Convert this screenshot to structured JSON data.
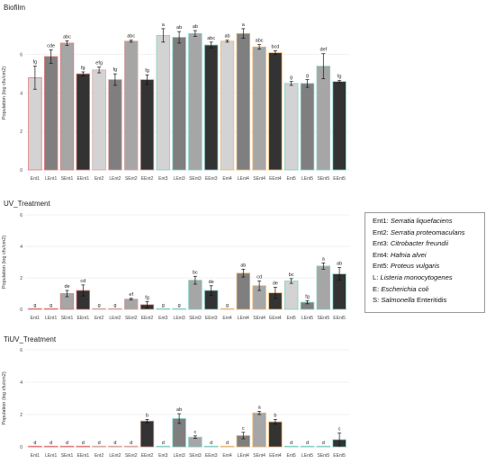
{
  "chart_data": [
    {
      "type": "bar",
      "title": "Biofilm",
      "ylabel": "Population (log cfu/cm2)",
      "ylim": [
        0,
        8
      ],
      "yticks": [
        0,
        2,
        4,
        6
      ],
      "categories": [
        "Ent1",
        "LEnt1",
        "SEnt1",
        "EEnt1",
        "Ent2",
        "LEnt2",
        "SEnt2",
        "EEnt2",
        "Ent3",
        "LEnt3",
        "SEnt3",
        "EEnt3",
        "Ent4",
        "LEnt4",
        "SEnt4",
        "EEnt4",
        "Ent5",
        "LEnt5",
        "SEnt5",
        "EEnt5"
      ],
      "values": [
        4.8,
        5.9,
        6.6,
        5.0,
        5.2,
        4.7,
        6.7,
        4.7,
        7.0,
        6.9,
        7.1,
        6.5,
        6.7,
        7.1,
        6.4,
        6.1,
        4.5,
        4.5,
        5.4,
        4.6
      ],
      "errors": [
        0.6,
        0.35,
        0.12,
        0.1,
        0.15,
        0.3,
        0.05,
        0.25,
        0.35,
        0.3,
        0.15,
        0.15,
        0.05,
        0.25,
        0.12,
        0.1,
        0.1,
        0.2,
        0.65,
        0.05
      ],
      "letters": [
        "fg",
        "cde",
        "abc",
        "fg",
        "efg",
        "fg",
        "abc",
        "fg",
        "a",
        "ab",
        "ab",
        "abc",
        "ab",
        "a",
        "abc",
        "bcd",
        "g",
        "g",
        "def",
        "fg"
      ]
    },
    {
      "type": "bar",
      "title": "UV_Treatment",
      "ylabel": "Population (log cfu/cm2)",
      "ylim": [
        0,
        6
      ],
      "yticks": [
        0,
        2,
        4,
        6
      ],
      "categories": [
        "Ent1",
        "LEnt1",
        "SEnt1",
        "EEnt1",
        "Ent2",
        "LEnt2",
        "SEnt2",
        "EEnt2",
        "Ent3",
        "LEnt3",
        "SEnt3",
        "EEnt3",
        "Ent4",
        "LEnt4",
        "SEnt4",
        "EEnt4",
        "Ent5",
        "LEnt5",
        "SEnt5",
        "EEnt5"
      ],
      "values": [
        0,
        0,
        1.0,
        1.2,
        0,
        0,
        0.65,
        0.3,
        0,
        0,
        1.85,
        1.2,
        0,
        2.3,
        1.5,
        1.05,
        1.8,
        0.45,
        2.75,
        2.25
      ],
      "errors": [
        0,
        0,
        0.2,
        0.35,
        0,
        0,
        0.05,
        0.2,
        0,
        0,
        0.25,
        0.3,
        0,
        0.25,
        0.3,
        0.35,
        0.15,
        0.1,
        0.2,
        0.4
      ],
      "letters": [
        "g",
        "g",
        "de",
        "cd",
        "g",
        "g",
        "ef",
        "fg",
        "g",
        "g",
        "bc",
        "de",
        "g",
        "ab",
        "cd",
        "de",
        "bc",
        "fg",
        "a",
        "ab"
      ]
    },
    {
      "type": "bar",
      "title": "TiUV_Treatment",
      "ylabel": "Population (log cfu/cm2)",
      "ylim": [
        0,
        6
      ],
      "yticks": [
        0,
        2,
        4,
        6
      ],
      "categories": [
        "Ent1",
        "LEnt1",
        "SEnt1",
        "EEnt1",
        "Ent2",
        "LEnt2",
        "SEnt2",
        "EEnt2",
        "Ent3",
        "LEnt3",
        "SEnt3",
        "EEnt3",
        "Ent4",
        "LEnt4",
        "SEnt4",
        "EEnt4",
        "Ent5",
        "LEnt5",
        "SEnt5",
        "EEnt5"
      ],
      "values": [
        0,
        0,
        0,
        0,
        0,
        0,
        0,
        1.6,
        0,
        1.75,
        0.6,
        0,
        0,
        0.7,
        2.1,
        1.55,
        0,
        0,
        0,
        0.45
      ],
      "errors": [
        0,
        0,
        0,
        0,
        0,
        0,
        0,
        0.1,
        0,
        0.3,
        0.08,
        0,
        0,
        0.2,
        0.1,
        0.15,
        0,
        0,
        0,
        0.4
      ],
      "letters": [
        "d",
        "d",
        "d",
        "d",
        "d",
        "d",
        "d",
        "b",
        "d",
        "ab",
        "c",
        "d",
        "d",
        "c",
        "a",
        "b",
        "d",
        "d",
        "d",
        "c"
      ]
    }
  ],
  "colors": {
    "bar_fills": [
      "#d3d3d3",
      "#7f7f7f",
      "#a6a6a6",
      "#333333"
    ],
    "group_outlines": [
      "#e07b7b",
      "#d4a5a0",
      "#87cfc4",
      "#e8b87a",
      "#87cfc4"
    ],
    "grid": "#e6e6e6"
  },
  "legend": [
    {
      "key": "Ent1:",
      "name": "Serratia liquefaciens"
    },
    {
      "key": "Ent2:",
      "name": "Serratia proteomaculans"
    },
    {
      "key": "Ent3:",
      "name": "Citrobacter freundii"
    },
    {
      "key": "Ent4:",
      "name": "Hafnia alvei"
    },
    {
      "key": "Ent5:",
      "name": "Proteus vulgaris"
    },
    {
      "key": "L:",
      "name": "Listeria monocytogenes"
    },
    {
      "key": "E:",
      "name": "Escherichia coli"
    },
    {
      "key": "S:",
      "name": "Salmonella Enteritidis",
      "name_italic_part": "Salmonella",
      "name_plain_part": " Enteritidis"
    }
  ]
}
